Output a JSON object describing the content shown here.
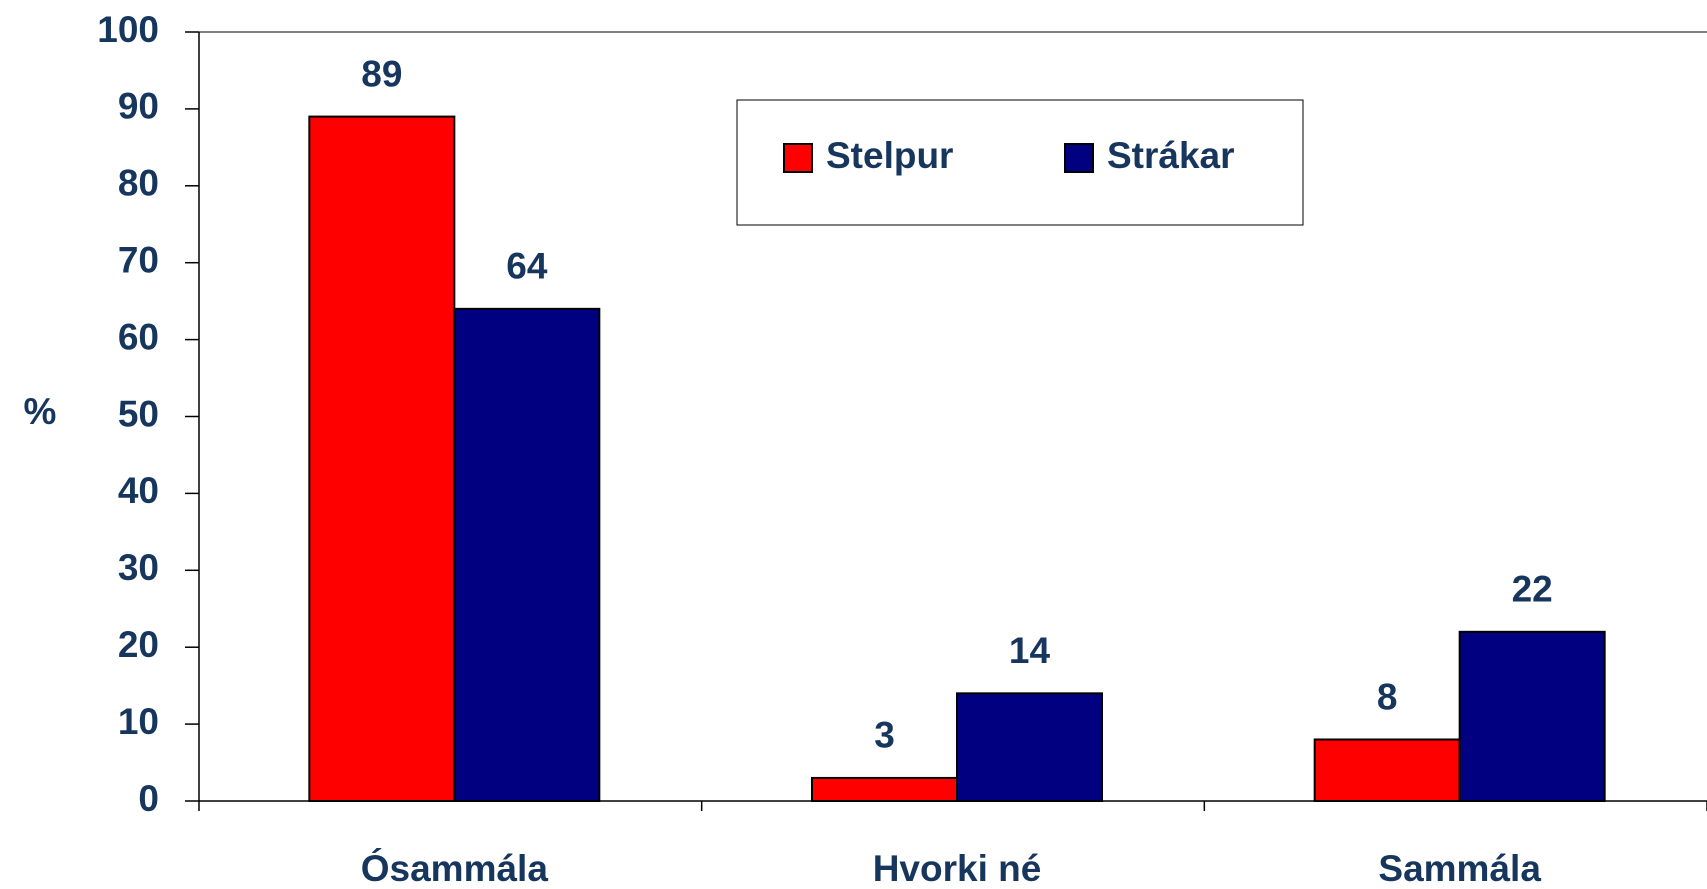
{
  "chart_data": {
    "type": "bar",
    "y_label": "%",
    "categories": [
      "Ósammála",
      "Hvorki né",
      "Sammála"
    ],
    "series": [
      {
        "name": "Stelpur",
        "color": "#ff0000",
        "values": [
          89,
          3,
          8
        ]
      },
      {
        "name": "Strákar",
        "color": "#000080",
        "values": [
          64,
          14,
          22
        ]
      }
    ],
    "ylim": [
      0,
      100
    ],
    "yticks": [
      0,
      10,
      20,
      30,
      40,
      50,
      60,
      70,
      80,
      90,
      100
    ],
    "legend": "top"
  }
}
